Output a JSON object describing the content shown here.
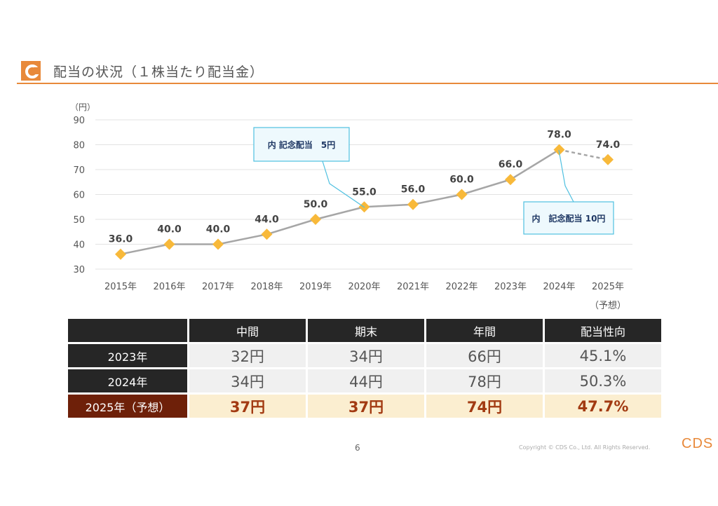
{
  "header": {
    "title": "配当の状況（１株当たり配当金）",
    "icon": "cds-logo-icon",
    "accent_color": "#e8893a"
  },
  "chart_data": {
    "type": "line",
    "ylabel": "（円）",
    "ylim": [
      30,
      90
    ],
    "yticks": [
      30,
      40,
      50,
      60,
      70,
      80,
      90
    ],
    "categories": [
      "2015年",
      "2016年",
      "2017年",
      "2018年",
      "2019年",
      "2020年",
      "2021年",
      "2022年",
      "2023年",
      "2024年",
      "2025年"
    ],
    "forecast_note": "（予想）",
    "series": [
      {
        "values": [
          36.0,
          40.0,
          40.0,
          44.0,
          50.0,
          55.0,
          56.0,
          60.0,
          66.0,
          78.0,
          74.0
        ],
        "marker_color": "#f8b93a",
        "line_color": "#a6a6a6",
        "dashed_last_segment": true
      }
    ],
    "data_labels": [
      "36.0",
      "40.0",
      "40.0",
      "44.0",
      "50.0",
      "55.0",
      "56.0",
      "60.0",
      "66.0",
      "78.0",
      "74.0"
    ],
    "grid": true,
    "annotations": [
      {
        "text": "内 記念配当　5円",
        "point_index": 5
      },
      {
        "text": "内　記念配当 10円",
        "point_index": 9
      }
    ]
  },
  "table": {
    "headers": [
      "",
      "中間",
      "期末",
      "年間",
      "配当性向"
    ],
    "rows": [
      {
        "label": "2023年",
        "cells": [
          "32円",
          "34円",
          "66円",
          "45.1%"
        ],
        "forecast": false
      },
      {
        "label": "2024年",
        "cells": [
          "34円",
          "44円",
          "78円",
          "50.3%"
        ],
        "forecast": false
      },
      {
        "label": "2025年（予想）",
        "cells": [
          "37円",
          "37円",
          "74円",
          "47.7%"
        ],
        "forecast": true
      }
    ]
  },
  "footer": {
    "page": "6",
    "copyright": "Copyright © CDS Co., Ltd.  All Rights Reserved.",
    "logo": "CDS"
  }
}
